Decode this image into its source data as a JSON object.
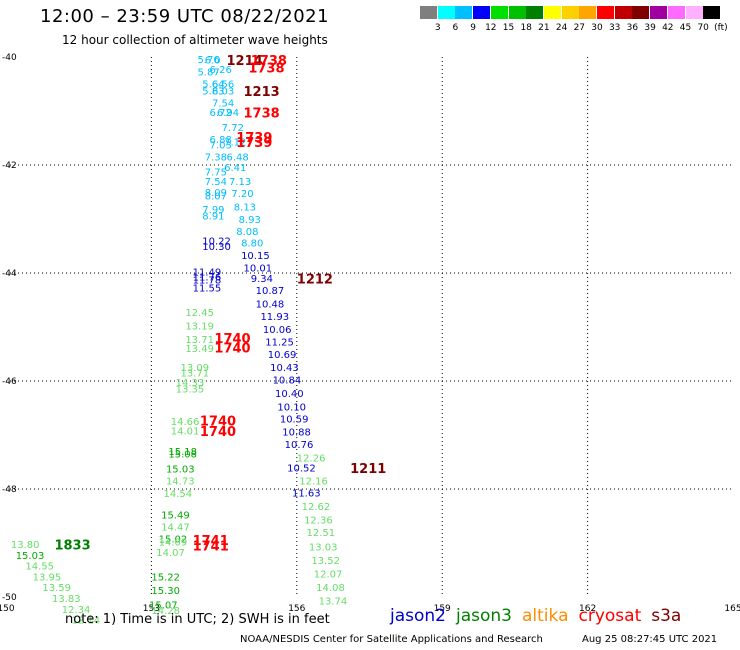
{
  "title": "12:00 – 23:59 UTC 08/22/2021",
  "subtitle": "12 hour collection of altimeter wave heights",
  "scale": {
    "colors": [
      "#7f7f7f",
      "#00ffff",
      "#00bfff",
      "#0000ff",
      "#00e000",
      "#00c000",
      "#008000",
      "#ffff00",
      "#ffd000",
      "#ffa500",
      "#ff0000",
      "#c00000",
      "#800000",
      "#a000a0",
      "#ff69ff",
      "#ffb0ff",
      "#000000"
    ],
    "labels": [
      "3",
      "6",
      "9",
      "12",
      "15",
      "18",
      "21",
      "24",
      "27",
      "30",
      "33",
      "36",
      "39",
      "42",
      "45",
      "70",
      "(ft)"
    ]
  },
  "axis": {
    "lon_ticks": [
      "150",
      "153",
      "156",
      "159",
      "162",
      "165"
    ],
    "lat_ticks": [
      "-40",
      "-42",
      "-44",
      "-46",
      "-48",
      "-50"
    ]
  },
  "note": "note: 1) Time is in UTC; 2) SWH is in feet",
  "credit": "NOAA/NESDIS Center for Satellite Applications and Research",
  "stamp": "Aug 25 08:27:45 UTC 2021",
  "legend": [
    {
      "name": "jason2",
      "color": "#0000cc"
    },
    {
      "name": "jason3",
      "color": "#008000"
    },
    {
      "name": "altika",
      "color": "#ff8c00"
    },
    {
      "name": "cryosat",
      "color": "#ff0000"
    },
    {
      "name": "s3a",
      "color": "#800000"
    }
  ],
  "obs": [
    {
      "lon": 153.95,
      "lat": -40.02,
      "t": "5.76",
      "c": "#00bfff"
    },
    {
      "lon": 154.1,
      "lat": -40.03,
      "t": "6.0",
      "c": "#00bfff"
    },
    {
      "lon": 153.95,
      "lat": -40.25,
      "t": "5.87",
      "c": "#00bfff"
    },
    {
      "lon": 154.2,
      "lat": -40.2,
      "t": "6.26",
      "c": "#00bfff"
    },
    {
      "lon": 154.05,
      "lat": -40.47,
      "t": "5.64",
      "c": "#00bfff"
    },
    {
      "lon": 154.25,
      "lat": -40.47,
      "t": "6.56",
      "c": "#00bfff"
    },
    {
      "lon": 154.05,
      "lat": -40.6,
      "t": "5.83",
      "c": "#00bfff"
    },
    {
      "lon": 154.25,
      "lat": -40.6,
      "t": "6.03",
      "c": "#00bfff"
    },
    {
      "lon": 154.25,
      "lat": -40.82,
      "t": "7.54",
      "c": "#00bfff"
    },
    {
      "lon": 154.2,
      "lat": -41.0,
      "t": "6.72",
      "c": "#00bfff"
    },
    {
      "lon": 154.35,
      "lat": -41.0,
      "t": "6.94",
      "c": "#00bfff"
    },
    {
      "lon": 154.45,
      "lat": -41.28,
      "t": "7.72",
      "c": "#00bfff"
    },
    {
      "lon": 154.2,
      "lat": -41.5,
      "t": "6.88",
      "c": "#00bfff"
    },
    {
      "lon": 154.2,
      "lat": -41.6,
      "t": "7.03",
      "c": "#00bfff"
    },
    {
      "lon": 154.5,
      "lat": -41.55,
      "t": "7.12",
      "c": "#00bfff"
    },
    {
      "lon": 154.1,
      "lat": -41.82,
      "t": "7.38",
      "c": "#00bfff"
    },
    {
      "lon": 154.55,
      "lat": -41.82,
      "t": "6.48",
      "c": "#00bfff"
    },
    {
      "lon": 154.5,
      "lat": -42.02,
      "t": "6.41",
      "c": "#00bfff"
    },
    {
      "lon": 154.1,
      "lat": -42.1,
      "t": "7.75",
      "c": "#00bfff"
    },
    {
      "lon": 154.1,
      "lat": -42.28,
      "t": "7.54",
      "c": "#00bfff"
    },
    {
      "lon": 154.6,
      "lat": -42.28,
      "t": "7.13",
      "c": "#00bfff"
    },
    {
      "lon": 154.1,
      "lat": -42.48,
      "t": "8.09",
      "c": "#00bfff"
    },
    {
      "lon": 154.1,
      "lat": -42.55,
      "t": "8.07",
      "c": "#00bfff"
    },
    {
      "lon": 154.65,
      "lat": -42.5,
      "t": "7.20",
      "c": "#00bfff"
    },
    {
      "lon": 154.05,
      "lat": -42.8,
      "t": "7.99",
      "c": "#00bfff"
    },
    {
      "lon": 154.7,
      "lat": -42.75,
      "t": "8.13",
      "c": "#00bfff"
    },
    {
      "lon": 154.05,
      "lat": -42.92,
      "t": "8.91",
      "c": "#00bfff"
    },
    {
      "lon": 154.8,
      "lat": -42.98,
      "t": "8.93",
      "c": "#00bfff"
    },
    {
      "lon": 154.75,
      "lat": -43.2,
      "t": "8.08",
      "c": "#00bfff"
    },
    {
      "lon": 154.05,
      "lat": -43.38,
      "t": "10.22",
      "c": "#0000cc"
    },
    {
      "lon": 154.05,
      "lat": -43.48,
      "t": "10.30",
      "c": "#0000cc"
    },
    {
      "lon": 154.85,
      "lat": -43.42,
      "t": "8.80",
      "c": "#00bfff"
    },
    {
      "lon": 154.85,
      "lat": -43.65,
      "t": "10.15",
      "c": "#0000cc"
    },
    {
      "lon": 154.9,
      "lat": -43.88,
      "t": "10.01",
      "c": "#0000cc"
    },
    {
      "lon": 153.85,
      "lat": -43.95,
      "t": "11.49",
      "c": "#0000cc"
    },
    {
      "lon": 153.85,
      "lat": -44.05,
      "t": "11.76",
      "c": "#0000cc"
    },
    {
      "lon": 153.85,
      "lat": -44.1,
      "t": "11.78",
      "c": "#0000cc"
    },
    {
      "lon": 155.05,
      "lat": -44.07,
      "t": "9.34",
      "c": "#0000cc"
    },
    {
      "lon": 153.85,
      "lat": -44.25,
      "t": "11.55",
      "c": "#0000cc"
    },
    {
      "lon": 155.15,
      "lat": -44.3,
      "t": "10.87",
      "c": "#0000cc"
    },
    {
      "lon": 155.15,
      "lat": -44.55,
      "t": "10.48",
      "c": "#0000cc"
    },
    {
      "lon": 155.25,
      "lat": -44.78,
      "t": "11.93",
      "c": "#0000cc"
    },
    {
      "lon": 155.3,
      "lat": -45.02,
      "t": "10.06",
      "c": "#0000cc"
    },
    {
      "lon": 155.35,
      "lat": -45.25,
      "t": "11.25",
      "c": "#0000cc"
    },
    {
      "lon": 155.4,
      "lat": -45.48,
      "t": "10.69",
      "c": "#0000cc"
    },
    {
      "lon": 155.45,
      "lat": -45.72,
      "t": "10.43",
      "c": "#0000cc"
    },
    {
      "lon": 155.5,
      "lat": -45.95,
      "t": "10.84",
      "c": "#0000cc"
    },
    {
      "lon": 155.55,
      "lat": -46.2,
      "t": "10.40",
      "c": "#0000cc"
    },
    {
      "lon": 155.6,
      "lat": -46.45,
      "t": "10.10",
      "c": "#0000cc"
    },
    {
      "lon": 155.65,
      "lat": -46.68,
      "t": "10.59",
      "c": "#0000cc"
    },
    {
      "lon": 155.7,
      "lat": -46.92,
      "t": "10.88",
      "c": "#0000cc"
    },
    {
      "lon": 155.75,
      "lat": -47.15,
      "t": "10.76",
      "c": "#0000cc"
    },
    {
      "lon": 155.8,
      "lat": -47.58,
      "t": "10.52",
      "c": "#0000cc"
    },
    {
      "lon": 155.9,
      "lat": -48.05,
      "t": "11.63",
      "c": "#0000cc"
    },
    {
      "lon": 153.7,
      "lat": -44.7,
      "t": "12.45",
      "c": "#66dd66"
    },
    {
      "lon": 153.7,
      "lat": -44.95,
      "t": "13.19",
      "c": "#66dd66"
    },
    {
      "lon": 153.7,
      "lat": -45.2,
      "t": "13.71",
      "c": "#66dd66"
    },
    {
      "lon": 153.7,
      "lat": -45.37,
      "t": "13.49",
      "c": "#66dd66"
    },
    {
      "lon": 153.6,
      "lat": -45.72,
      "t": "13.09",
      "c": "#66dd66"
    },
    {
      "lon": 153.6,
      "lat": -45.82,
      "t": "13.71",
      "c": "#66dd66"
    },
    {
      "lon": 153.5,
      "lat": -46.0,
      "t": "14.33",
      "c": "#66dd66"
    },
    {
      "lon": 153.5,
      "lat": -46.12,
      "t": "13.35",
      "c": "#66dd66"
    },
    {
      "lon": 153.4,
      "lat": -46.72,
      "t": "14.66",
      "c": "#66dd66"
    },
    {
      "lon": 153.4,
      "lat": -46.9,
      "t": "14.01",
      "c": "#66dd66"
    },
    {
      "lon": 153.35,
      "lat": -47.28,
      "t": "15.18",
      "c": "#00aa00"
    },
    {
      "lon": 153.35,
      "lat": -47.32,
      "t": "15.08",
      "c": "#00aa00"
    },
    {
      "lon": 153.3,
      "lat": -47.6,
      "t": "15.03",
      "c": "#00aa00"
    },
    {
      "lon": 153.3,
      "lat": -47.82,
      "t": "14.73",
      "c": "#66dd66"
    },
    {
      "lon": 153.25,
      "lat": -48.06,
      "t": "14.54",
      "c": "#66dd66"
    },
    {
      "lon": 153.2,
      "lat": -48.45,
      "t": "15.49",
      "c": "#00aa00"
    },
    {
      "lon": 153.2,
      "lat": -48.68,
      "t": "14.47",
      "c": "#66dd66"
    },
    {
      "lon": 153.15,
      "lat": -48.9,
      "t": "15.02",
      "c": "#00aa00"
    },
    {
      "lon": 153.15,
      "lat": -48.95,
      "t": "14.09",
      "c": "#66dd66"
    },
    {
      "lon": 153.1,
      "lat": -49.15,
      "t": "14.07",
      "c": "#66dd66"
    },
    {
      "lon": 153.0,
      "lat": -49.6,
      "t": "15.22",
      "c": "#00aa00"
    },
    {
      "lon": 153.0,
      "lat": -49.85,
      "t": "15.30",
      "c": "#00aa00"
    },
    {
      "lon": 152.95,
      "lat": -50.12,
      "t": "15.07",
      "c": "#00aa00"
    },
    {
      "lon": 153.0,
      "lat": -50.22,
      "t": "14.28",
      "c": "#66dd66"
    },
    {
      "lon": 156.0,
      "lat": -47.4,
      "t": "12.26",
      "c": "#66dd66"
    },
    {
      "lon": 156.05,
      "lat": -47.82,
      "t": "12.16",
      "c": "#66dd66"
    },
    {
      "lon": 156.1,
      "lat": -48.3,
      "t": "12.62",
      "c": "#66dd66"
    },
    {
      "lon": 156.15,
      "lat": -48.55,
      "t": "12.36",
      "c": "#66dd66"
    },
    {
      "lon": 156.2,
      "lat": -48.78,
      "t": "12.51",
      "c": "#66dd66"
    },
    {
      "lon": 156.25,
      "lat": -49.05,
      "t": "13.03",
      "c": "#66dd66"
    },
    {
      "lon": 156.3,
      "lat": -49.3,
      "t": "13.52",
      "c": "#66dd66"
    },
    {
      "lon": 156.35,
      "lat": -49.55,
      "t": "12.07",
      "c": "#66dd66"
    },
    {
      "lon": 156.4,
      "lat": -49.8,
      "t": "14.08",
      "c": "#66dd66"
    },
    {
      "lon": 156.45,
      "lat": -50.05,
      "t": "13.74",
      "c": "#66dd66"
    },
    {
      "lon": 150.1,
      "lat": -49.0,
      "t": "13.80",
      "c": "#66dd66"
    },
    {
      "lon": 150.2,
      "lat": -49.2,
      "t": "15.03",
      "c": "#00aa00"
    },
    {
      "lon": 150.4,
      "lat": -49.4,
      "t": "14.55",
      "c": "#66dd66"
    },
    {
      "lon": 150.55,
      "lat": -49.6,
      "t": "13.95",
      "c": "#66dd66"
    },
    {
      "lon": 150.75,
      "lat": -49.8,
      "t": "13.59",
      "c": "#66dd66"
    },
    {
      "lon": 150.95,
      "lat": -50.0,
      "t": "13.83",
      "c": "#66dd66"
    },
    {
      "lon": 151.15,
      "lat": -50.2,
      "t": "12.34",
      "c": "#66dd66"
    },
    {
      "lon": 151.35,
      "lat": -50.4,
      "t": "12.14",
      "c": "#66dd66"
    }
  ],
  "tags": [
    {
      "lon": 154.55,
      "lat": -40.03,
      "t": "1214",
      "c": "#800000"
    },
    {
      "lon": 155.05,
      "lat": -40.03,
      "t": "1738",
      "c": "#ff0000"
    },
    {
      "lon": 155.0,
      "lat": -40.17,
      "t": "1738",
      "c": "#ff0000"
    },
    {
      "lon": 154.9,
      "lat": -40.6,
      "t": "1213",
      "c": "#800000"
    },
    {
      "lon": 154.9,
      "lat": -41.0,
      "t": "1738",
      "c": "#ff0000"
    },
    {
      "lon": 154.75,
      "lat": -41.45,
      "t": "1739",
      "c": "#ff0000"
    },
    {
      "lon": 154.75,
      "lat": -41.55,
      "t": "1739",
      "c": "#ff0000"
    },
    {
      "lon": 156.0,
      "lat": -44.07,
      "t": "1212",
      "c": "#800000"
    },
    {
      "lon": 154.3,
      "lat": -45.18,
      "t": "1740",
      "c": "#ff0000"
    },
    {
      "lon": 154.3,
      "lat": -45.35,
      "t": "1740",
      "c": "#ff0000"
    },
    {
      "lon": 154.0,
      "lat": -46.7,
      "t": "1740",
      "c": "#ff0000"
    },
    {
      "lon": 154.0,
      "lat": -46.9,
      "t": "1740",
      "c": "#ff0000"
    },
    {
      "lon": 157.1,
      "lat": -47.58,
      "t": "1211",
      "c": "#800000"
    },
    {
      "lon": 153.85,
      "lat": -48.92,
      "t": "1741",
      "c": "#ff0000"
    },
    {
      "lon": 153.85,
      "lat": -49.02,
      "t": "1741",
      "c": "#ff0000"
    },
    {
      "lon": 151.0,
      "lat": -49.0,
      "t": "1833",
      "c": "#008000"
    }
  ]
}
